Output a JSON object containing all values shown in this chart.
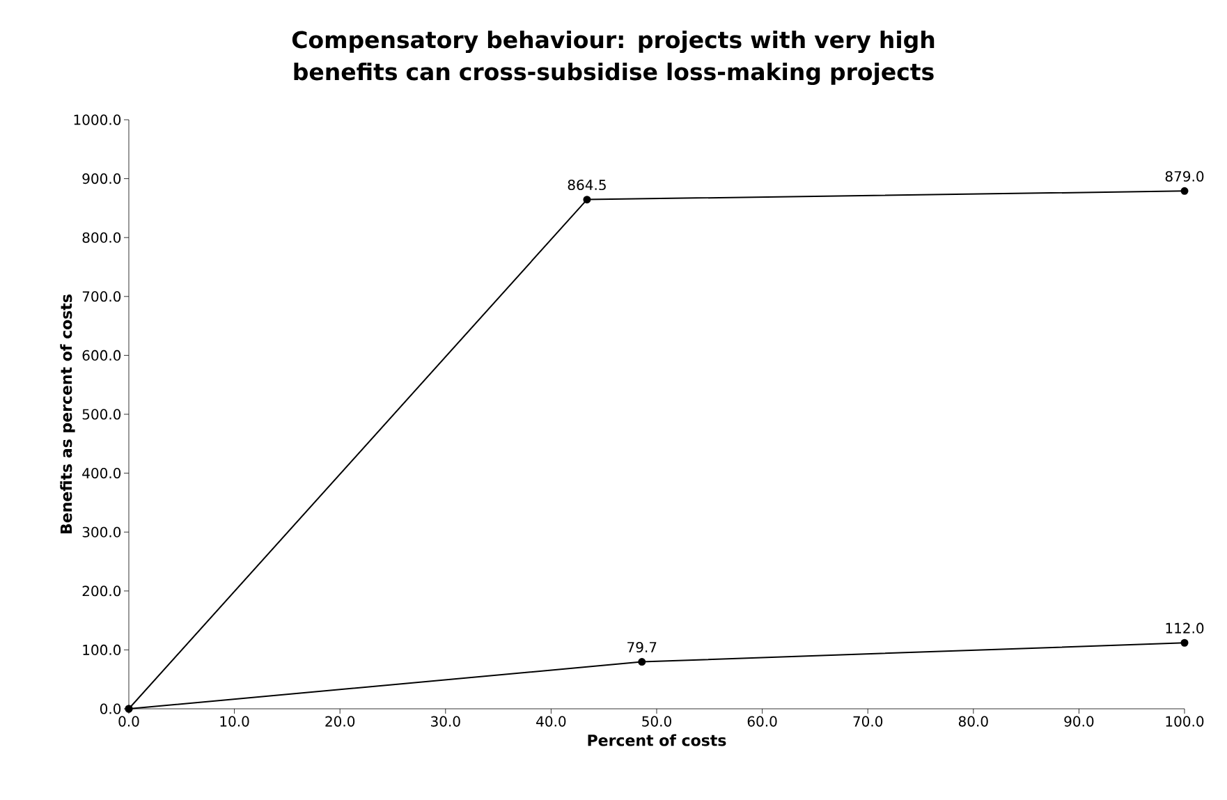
{
  "chart_data": {
    "type": "line",
    "title": "Compensatory behaviour: projects with very high benefits can cross-subsidise loss-making projects",
    "xlabel": "Percent of costs",
    "ylabel": "Benefits as percent of costs",
    "series": [
      {
        "color": "#000000",
        "x": [
          0,
          43.4,
          100
        ],
        "values": [
          0,
          864.5,
          879.0
        ],
        "value_labels": [
          null,
          "864.5",
          "879.0"
        ]
      },
      {
        "color": "#000000",
        "x": [
          0,
          48.6,
          100
        ],
        "values": [
          0,
          79.7,
          112.0
        ],
        "value_labels": [
          null,
          "79.7",
          "112.0"
        ]
      }
    ],
    "xlim": [
      0,
      100
    ],
    "ylim": [
      0,
      1000
    ],
    "xticks": [
      {
        "value": 0,
        "label": "0.0"
      },
      {
        "value": 10,
        "label": "10.0"
      },
      {
        "value": 20,
        "label": "20.0"
      },
      {
        "value": 30,
        "label": "30.0"
      },
      {
        "value": 40,
        "label": "40.0"
      },
      {
        "value": 50,
        "label": "50.0"
      },
      {
        "value": 60,
        "label": "60.0"
      },
      {
        "value": 70,
        "label": "70.0"
      },
      {
        "value": 80,
        "label": "80.0"
      },
      {
        "value": 90,
        "label": "90.0"
      },
      {
        "value": 100,
        "label": "100.0"
      }
    ],
    "yticks": [
      {
        "value": 0,
        "label": "0.0"
      },
      {
        "value": 100,
        "label": "100.0"
      },
      {
        "value": 200,
        "label": "200.0"
      },
      {
        "value": 300,
        "label": "300.0"
      },
      {
        "value": 400,
        "label": "400.0"
      },
      {
        "value": 500,
        "label": "500.0"
      },
      {
        "value": 600,
        "label": "600.0"
      },
      {
        "value": 700,
        "label": "700.0"
      },
      {
        "value": 800,
        "label": "800.0"
      },
      {
        "value": 900,
        "label": "900.0"
      },
      {
        "value": 1000,
        "label": "1000.0"
      }
    ],
    "grid": false,
    "legend": false,
    "marker": "circle",
    "line_style": "solid"
  }
}
